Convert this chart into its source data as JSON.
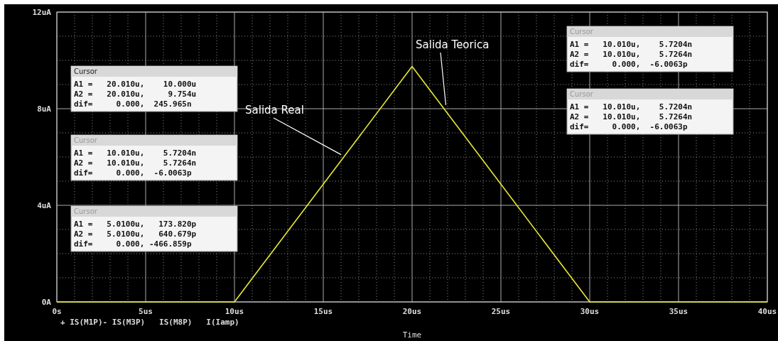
{
  "chart_data": {
    "type": "line",
    "xlabel": "Time",
    "x": [
      0,
      10,
      20,
      30,
      40
    ],
    "series": [
      {
        "color": "#e8e83a",
        "values": [
          0,
          0,
          9.75,
          0,
          0
        ]
      }
    ],
    "xlim": [
      0,
      40
    ],
    "xticks": [
      {
        "value": 0,
        "label": "0s"
      },
      {
        "value": 5,
        "label": "5us"
      },
      {
        "value": 10,
        "label": "10us"
      },
      {
        "value": 15,
        "label": "15us"
      },
      {
        "value": 20,
        "label": "20us"
      },
      {
        "value": 25,
        "label": "25us"
      },
      {
        "value": 30,
        "label": "30us"
      },
      {
        "value": 35,
        "label": "35us"
      },
      {
        "value": 40,
        "label": "40us"
      }
    ],
    "ylim": [
      0,
      12
    ],
    "yticks": [
      {
        "value": 0,
        "label": "0A"
      },
      {
        "value": 4,
        "label": "4uA"
      },
      {
        "value": 8,
        "label": "8uA"
      },
      {
        "value": 12,
        "label": "12uA"
      }
    ],
    "grid": true,
    "line_style": "solid",
    "marker": "none",
    "legend": false,
    "annotations": [
      {
        "text": "Salida Real",
        "x": 16,
        "y": 6.1
      },
      {
        "text": "Salida Teorica",
        "x": 21.9,
        "y": 8.15
      },
      "Cursor\nA1 =   20.010u,    10.000u\nA2 =   20.010u,     9.754u\ndif=     0.000,  245.965n",
      "Cursor\nA1 =   10.010u,    5.7204n\nA2 =   10.010u,    5.7264n\ndif=     0.000,  -6.0063p",
      "Cursor\nA1 =   5.0100u,   173.820p\nA2 =   5.0100u,   640.679p\ndif=     0.000, -466.859p",
      "Cursor\nA1 =   10.010u,    5.7204n\nA2 =   10.010u,    5.7264n\ndif=     0.000,  -6.0063p",
      "Cursor\nA1 =   10.010u,    5.7204n\nA2 =   10.010u,    5.7264n\ndif=     0.000,  -6.0063p",
      "+ IS(M1P)- IS(M3P)   IS(M8P)   I(Iamp)"
    ]
  }
}
